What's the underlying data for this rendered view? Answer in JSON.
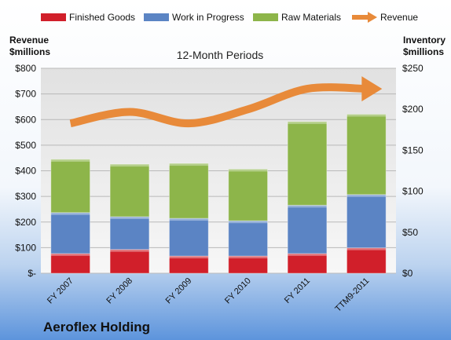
{
  "chart_data": {
    "type": "bar",
    "stacked": true,
    "title": "12-Month Periods",
    "company": "Aeroflex Holding",
    "left_axis": {
      "label_line1": "Revenue",
      "label_line2": "$millions",
      "min": 0,
      "max": 800,
      "step": 100,
      "tick_labels": [
        "$-",
        "$100",
        "$200",
        "$300",
        "$400",
        "$500",
        "$600",
        "$700",
        "$800"
      ]
    },
    "right_axis": {
      "label_line1": "Inventory",
      "label_line2": "$millions",
      "min": 0,
      "max": 250,
      "step": 50,
      "tick_labels": [
        "$0",
        "$50",
        "$100",
        "$150",
        "$200",
        "$250"
      ]
    },
    "categories": [
      "FY 2007",
      "FY 2008",
      "FY 2009",
      "FY 2010",
      "FY 2011",
      "TTM9-2011"
    ],
    "series": [
      {
        "name": "Finished Goods",
        "axis": "right",
        "type": "bar",
        "color": "#d11f2a",
        "values": [
          24,
          29,
          21,
          21,
          24,
          31
        ]
      },
      {
        "name": "Work in Progress",
        "axis": "right",
        "type": "bar",
        "color": "#5b84c4",
        "values": [
          50,
          40,
          46,
          43,
          59,
          65
        ]
      },
      {
        "name": "Raw Materials",
        "axis": "right",
        "type": "bar",
        "color": "#8db54a",
        "values": [
          65,
          64,
          67,
          63,
          102,
          98
        ]
      },
      {
        "name": "Revenue",
        "axis": "left",
        "type": "line",
        "color": "#e88a3a",
        "values": [
          585,
          630,
          585,
          640,
          720,
          720
        ]
      }
    ],
    "legend_position": "top",
    "grid": true
  }
}
